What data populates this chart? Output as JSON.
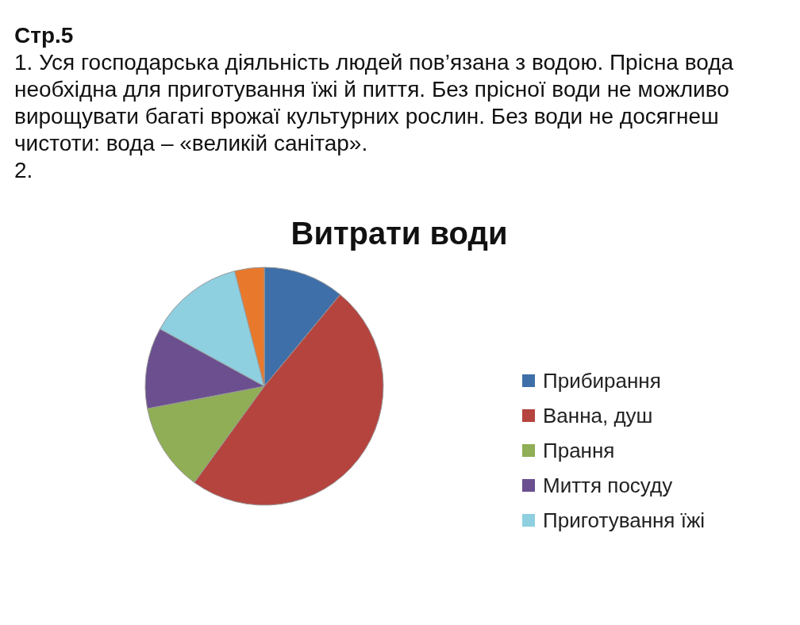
{
  "chart_data": {
    "type": "pie",
    "title": "Витрати води",
    "annotations": [
      "Стр.5",
      "1. Уся господарська діяльність людей пов’язана з водою. Прісна вода необхідна для приготування їжі й пиття. Без прісної води не можливо вирощувати багаті врожаї культурних рослин. Без води не досягнеш чистоти: вода – «великій санітар».",
      "2."
    ],
    "categories": [
      "Прибирання",
      "Ванна, душ",
      "Прання",
      "Миття посуду",
      "Приготування їжі",
      null
    ],
    "values": [
      11,
      49,
      12,
      11,
      13,
      4
    ],
    "colors": [
      "#3f6fa8",
      "#b5443f",
      "#8fae55",
      "#6b4f8f",
      "#8ecfe0",
      "#e8792c"
    ],
    "legend": "right"
  }
}
